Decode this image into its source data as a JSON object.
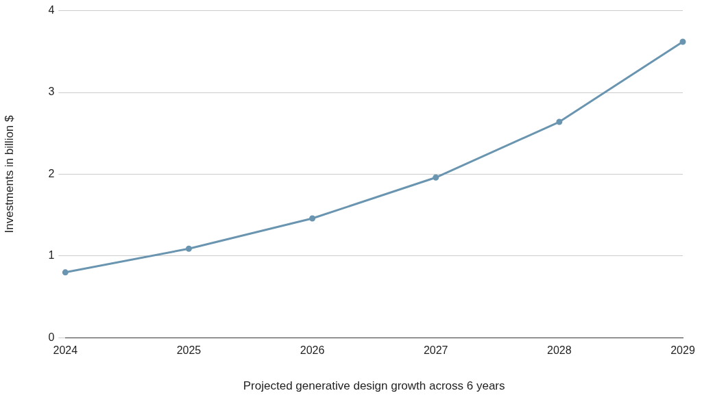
{
  "chart_data": {
    "type": "line",
    "xlabel": "Projected generative design growth across 6 years",
    "ylabel": "Investments in billion $",
    "categories": [
      "2024",
      "2025",
      "2026",
      "2027",
      "2028",
      "2029"
    ],
    "series": [
      {
        "color": "#6a95b0",
        "values": [
          0.8,
          1.09,
          1.46,
          1.96,
          2.64,
          3.62
        ]
      }
    ],
    "ylim": [
      0,
      4
    ],
    "yticks": [
      0,
      1,
      2,
      3,
      4
    ],
    "grid": "y",
    "legend": false,
    "marker": "circle",
    "line_style": "solid"
  }
}
